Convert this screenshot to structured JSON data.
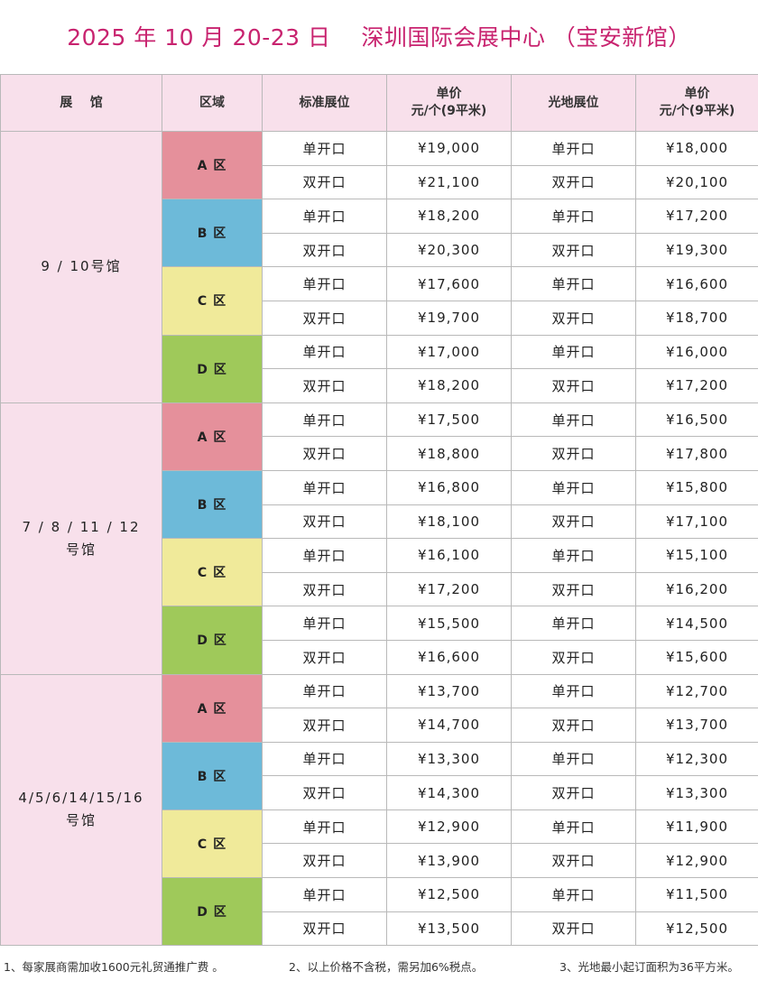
{
  "title": "2025 年 10 月 20-23 日    深圳国际会展中心 （宝安新馆）",
  "headers": {
    "hall": "展    馆",
    "zone": "区域",
    "standard": "标准展位",
    "price1_line1": "单价",
    "price1_line2": "元/个(9平米)",
    "raw": "光地展位",
    "price2_line1": "单价",
    "price2_line2": "元/个(9平米)"
  },
  "groups": [
    {
      "hall_line1": "9 / 10号馆",
      "hall_line2": "",
      "zones": [
        {
          "label": "A 区",
          "color": "#e5909b",
          "rows": [
            {
              "type": "单开口",
              "price": "¥19,000",
              "raw_type": "单开口",
              "raw_price": "¥18,000"
            },
            {
              "type": "双开口",
              "price": "¥21,100",
              "raw_type": "双开口",
              "raw_price": "¥20,100"
            }
          ]
        },
        {
          "label": "B 区",
          "color": "#6dbad9",
          "rows": [
            {
              "type": "单开口",
              "price": "¥18,200",
              "raw_type": "单开口",
              "raw_price": "¥17,200"
            },
            {
              "type": "双开口",
              "price": "¥20,300",
              "raw_type": "双开口",
              "raw_price": "¥19,300"
            }
          ]
        },
        {
          "label": "C 区",
          "color": "#f0ea9a",
          "rows": [
            {
              "type": "单开口",
              "price": "¥17,600",
              "raw_type": "单开口",
              "raw_price": "¥16,600"
            },
            {
              "type": "双开口",
              "price": "¥19,700",
              "raw_type": "双开口",
              "raw_price": "¥18,700"
            }
          ]
        },
        {
          "label": "D 区",
          "color": "#9fc95a",
          "rows": [
            {
              "type": "单开口",
              "price": "¥17,000",
              "raw_type": "单开口",
              "raw_price": "¥16,000"
            },
            {
              "type": "双开口",
              "price": "¥18,200",
              "raw_type": "双开口",
              "raw_price": "¥17,200"
            }
          ]
        }
      ]
    },
    {
      "hall_line1": "7 / 8 / 11 / 12",
      "hall_line2": "号馆",
      "zones": [
        {
          "label": "A 区",
          "color": "#e5909b",
          "rows": [
            {
              "type": "单开口",
              "price": "¥17,500",
              "raw_type": "单开口",
              "raw_price": "¥16,500"
            },
            {
              "type": "双开口",
              "price": "¥18,800",
              "raw_type": "双开口",
              "raw_price": "¥17,800"
            }
          ]
        },
        {
          "label": "B 区",
          "color": "#6dbad9",
          "rows": [
            {
              "type": "单开口",
              "price": "¥16,800",
              "raw_type": "单开口",
              "raw_price": "¥15,800"
            },
            {
              "type": "双开口",
              "price": "¥18,100",
              "raw_type": "双开口",
              "raw_price": "¥17,100"
            }
          ]
        },
        {
          "label": "C 区",
          "color": "#f0ea9a",
          "rows": [
            {
              "type": "单开口",
              "price": "¥16,100",
              "raw_type": "单开口",
              "raw_price": "¥15,100"
            },
            {
              "type": "双开口",
              "price": "¥17,200",
              "raw_type": "双开口",
              "raw_price": "¥16,200"
            }
          ]
        },
        {
          "label": "D 区",
          "color": "#9fc95a",
          "rows": [
            {
              "type": "单开口",
              "price": "¥15,500",
              "raw_type": "单开口",
              "raw_price": "¥14,500"
            },
            {
              "type": "双开口",
              "price": "¥16,600",
              "raw_type": "双开口",
              "raw_price": "¥15,600"
            }
          ]
        }
      ]
    },
    {
      "hall_line1": "4/5/6/14/15/16",
      "hall_line2": "号馆",
      "zones": [
        {
          "label": "A 区",
          "color": "#e5909b",
          "rows": [
            {
              "type": "单开口",
              "price": "¥13,700",
              "raw_type": "单开口",
              "raw_price": "¥12,700"
            },
            {
              "type": "双开口",
              "price": "¥14,700",
              "raw_type": "双开口",
              "raw_price": "¥13,700"
            }
          ]
        },
        {
          "label": "B 区",
          "color": "#6dbad9",
          "rows": [
            {
              "type": "单开口",
              "price": "¥13,300",
              "raw_type": "单开口",
              "raw_price": "¥12,300"
            },
            {
              "type": "双开口",
              "price": "¥14,300",
              "raw_type": "双开口",
              "raw_price": "¥13,300"
            }
          ]
        },
        {
          "label": "C 区",
          "color": "#f0ea9a",
          "rows": [
            {
              "type": "单开口",
              "price": "¥12,900",
              "raw_type": "单开口",
              "raw_price": "¥11,900"
            },
            {
              "type": "双开口",
              "price": "¥13,900",
              "raw_type": "双开口",
              "raw_price": "¥12,900"
            }
          ]
        },
        {
          "label": "D 区",
          "color": "#9fc95a",
          "rows": [
            {
              "type": "单开口",
              "price": "¥12,500",
              "raw_type": "单开口",
              "raw_price": "¥11,500"
            },
            {
              "type": "双开口",
              "price": "¥13,500",
              "raw_type": "双开口",
              "raw_price": "¥12,500"
            }
          ]
        }
      ]
    }
  ],
  "notes": {
    "note1": "1、每家展商需加收1600元礼贸通推广费 。",
    "note2": "2、以上价格不含税，需另加6%税点。",
    "note3": "3、光地最小起订面积为36平方米。"
  }
}
